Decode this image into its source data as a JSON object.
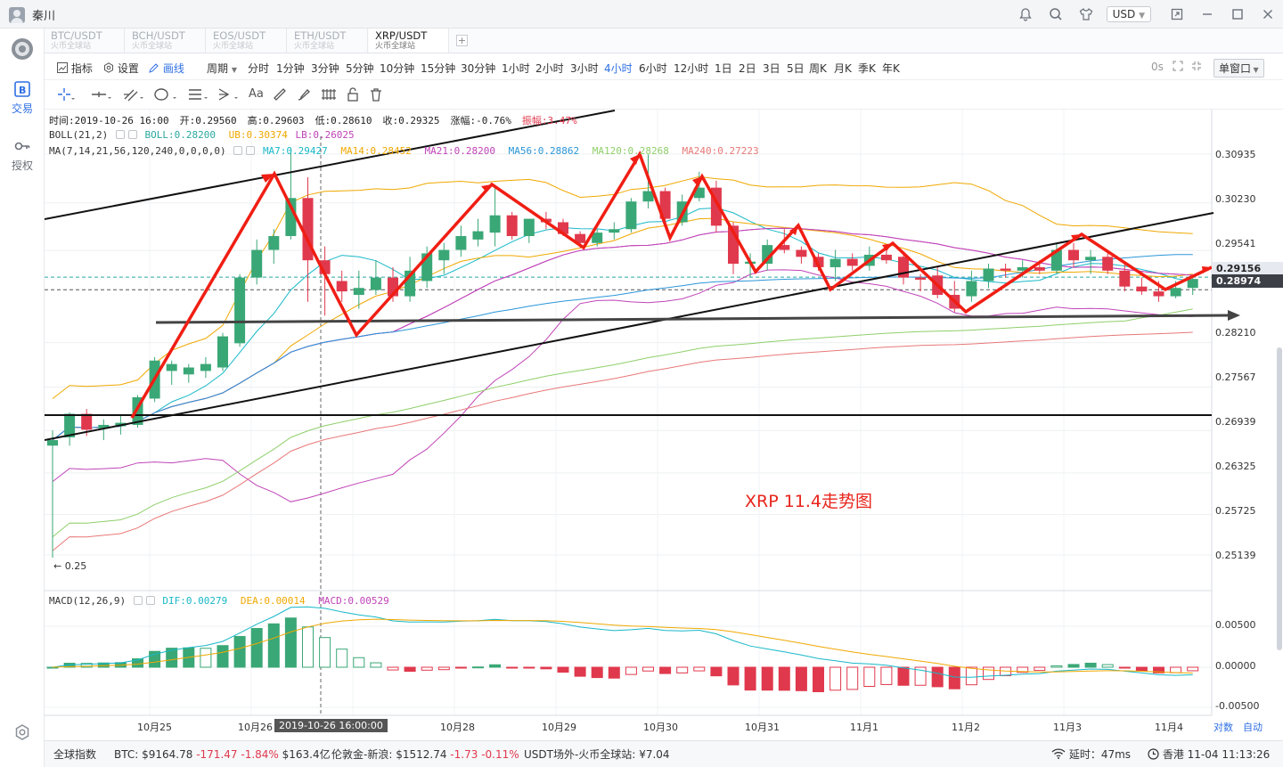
{
  "app": {
    "user": "秦川",
    "currency": "USD",
    "nav": [
      {
        "label": "交易",
        "icon": "trade-icon",
        "active": true
      },
      {
        "label": "授权",
        "icon": "key-icon",
        "active": false
      }
    ]
  },
  "tabs": [
    {
      "pair": "BTC/USDT",
      "source": "火币全球站",
      "active": false
    },
    {
      "pair": "BCH/USDT",
      "source": "火币全球站",
      "active": false
    },
    {
      "pair": "EOS/USDT",
      "source": "火币全球站",
      "active": false
    },
    {
      "pair": "ETH/USDT",
      "source": "火币全球站",
      "active": false
    },
    {
      "pair": "XRP/USDT",
      "source": "火币全球站",
      "active": true
    }
  ],
  "toolbar": {
    "indicator": "指标",
    "settings": "设置",
    "draw": "画线",
    "period_label": "周期",
    "periods": [
      "分时",
      "1分钟",
      "3分钟",
      "5分钟",
      "10分钟",
      "15分钟",
      "30分钟",
      "1小时",
      "2小时",
      "3小时",
      "4小时",
      "6小时",
      "12小时",
      "1日",
      "2日",
      "3日",
      "5日",
      "周K",
      "月K",
      "季K",
      "年K"
    ],
    "active_period": "4小时",
    "refresh": "0s",
    "window_mode": "单窗口"
  },
  "drawing_tools": [
    "crosshair-icon",
    "horizontal-line-icon",
    "parallel-lines-icon",
    "circle-icon",
    "menu-lines-icon",
    "arrow-pattern-icon",
    "text-icon",
    "ruler-icon",
    "brush-icon",
    "fibonacci-icon",
    "lock-icon",
    "trash-icon"
  ],
  "drawing_tools_text": "Aa",
  "legend": {
    "time": "时间:2019-10-26 16:00",
    "open": "开:0.29560",
    "high": "高:0.29603",
    "low": "低:0.28610",
    "close": "收:0.29325",
    "change": "涨幅:-0.76%",
    "amplitude": "振幅:3.47%",
    "boll_name": "BOLL(21,2)",
    "boll": "BOLL:0.28200",
    "boll_ub": "UB:0.30374",
    "boll_lb": "LB:0.26025",
    "ma_name": "MA(7,14,21,56,120,240,0,0,0,0)",
    "ma": [
      {
        "label": "MA7:0.29427",
        "color": "#18b8c8"
      },
      {
        "label": "MA14:0.28452",
        "color": "#f0a800"
      },
      {
        "label": "MA21:0.28200",
        "color": "#c044b8"
      },
      {
        "label": "MA56:0.28862",
        "color": "#2a96d8"
      },
      {
        "label": "MA120:0.28268",
        "color": "#8fcf6a"
      },
      {
        "label": "MA240:0.27223",
        "color": "#e87878"
      }
    ],
    "macd_name": "MACD(12,26,9)",
    "dif": "DIF:0.00279",
    "dea": "DEA:0.00014",
    "macd": "MACD:0.00529"
  },
  "price_axis": [
    "0.30935",
    "0.30230",
    "0.29541",
    "0.28210",
    "0.27567",
    "0.26939",
    "0.26325",
    "0.25725",
    "0.25139"
  ],
  "price_tags": [
    {
      "value": "0.29156",
      "bg": "#e6eaf0",
      "color": "#222"
    },
    {
      "value": "0.28974",
      "bg": "#3c3f46",
      "color": "#fff"
    }
  ],
  "macd_axis": [
    "0.00500",
    "0.00000",
    "-0.00500"
  ],
  "time_axis": [
    "10月25",
    "10月26",
    "10月28",
    "10月29",
    "10月30",
    "10月31",
    "11月1",
    "11月2",
    "11月3",
    "11月4"
  ],
  "time_highlight": "2019-10-26 16:00:00",
  "low_marker": "← 0.25",
  "annotation": "XRP 11.4走势图",
  "scale_buttons": [
    "对数",
    "自动"
  ],
  "colors": {
    "up": "#3aa776",
    "down": "#e0394d",
    "accent": "#2f6fe4",
    "annotation": "#e8251c"
  },
  "status": {
    "index": "全球指数",
    "btc_label": "BTC:",
    "btc_price": "$9164.78",
    "btc_change": "-171.47",
    "btc_pct": "-1.84%",
    "btc_vol": "$163.4亿",
    "gold_label": "伦敦金-新浪:",
    "gold_price": "$1512.74",
    "gold_change": "-1.73",
    "gold_pct": "-0.11%",
    "usdt_label": "USDT场外-火币全球站:",
    "usdt_price": "¥7.04",
    "latency": "延时：47ms",
    "clock": "香港 11-04 11:13:26"
  },
  "chart_data": {
    "type": "candlestick",
    "pair": "XRP/USDT",
    "interval": "4小时",
    "ylim": [
      0.25,
      0.313
    ],
    "candles": [
      {
        "o": 0.2672,
        "h": 0.2694,
        "l": 0.251,
        "c": 0.268
      },
      {
        "o": 0.2684,
        "h": 0.272,
        "l": 0.2672,
        "c": 0.2718
      },
      {
        "o": 0.2718,
        "h": 0.2725,
        "l": 0.2686,
        "c": 0.2695
      },
      {
        "o": 0.2697,
        "h": 0.271,
        "l": 0.268,
        "c": 0.2702
      },
      {
        "o": 0.27,
        "h": 0.2715,
        "l": 0.2688,
        "c": 0.2705
      },
      {
        "o": 0.2702,
        "h": 0.2745,
        "l": 0.2698,
        "c": 0.2742
      },
      {
        "o": 0.274,
        "h": 0.28,
        "l": 0.2735,
        "c": 0.2795
      },
      {
        "o": 0.278,
        "h": 0.2795,
        "l": 0.276,
        "c": 0.279
      },
      {
        "o": 0.2775,
        "h": 0.279,
        "l": 0.2763,
        "c": 0.2785
      },
      {
        "o": 0.278,
        "h": 0.28,
        "l": 0.277,
        "c": 0.279
      },
      {
        "o": 0.2785,
        "h": 0.2835,
        "l": 0.278,
        "c": 0.283
      },
      {
        "o": 0.282,
        "h": 0.292,
        "l": 0.2815,
        "c": 0.2915
      },
      {
        "o": 0.2915,
        "h": 0.297,
        "l": 0.2905,
        "c": 0.2955
      },
      {
        "o": 0.2955,
        "h": 0.2985,
        "l": 0.2935,
        "c": 0.2975
      },
      {
        "o": 0.2975,
        "h": 0.3103,
        "l": 0.297,
        "c": 0.303
      },
      {
        "o": 0.303,
        "h": 0.306,
        "l": 0.288,
        "c": 0.294
      },
      {
        "o": 0.294,
        "h": 0.296,
        "l": 0.286,
        "c": 0.292
      },
      {
        "o": 0.291,
        "h": 0.2925,
        "l": 0.288,
        "c": 0.2895
      },
      {
        "o": 0.289,
        "h": 0.2925,
        "l": 0.287,
        "c": 0.29
      },
      {
        "o": 0.2897,
        "h": 0.294,
        "l": 0.289,
        "c": 0.2915
      },
      {
        "o": 0.2915,
        "h": 0.293,
        "l": 0.288,
        "c": 0.2888
      },
      {
        "o": 0.2888,
        "h": 0.2945,
        "l": 0.288,
        "c": 0.2925
      },
      {
        "o": 0.291,
        "h": 0.296,
        "l": 0.29,
        "c": 0.295
      },
      {
        "o": 0.294,
        "h": 0.2965,
        "l": 0.292,
        "c": 0.2955
      },
      {
        "o": 0.2955,
        "h": 0.299,
        "l": 0.2945,
        "c": 0.2975
      },
      {
        "o": 0.297,
        "h": 0.3,
        "l": 0.296,
        "c": 0.2982
      },
      {
        "o": 0.298,
        "h": 0.3045,
        "l": 0.296,
        "c": 0.3005
      },
      {
        "o": 0.3005,
        "h": 0.301,
        "l": 0.297,
        "c": 0.2975
      },
      {
        "o": 0.2975,
        "h": 0.3,
        "l": 0.2965,
        "c": 0.3
      },
      {
        "o": 0.3,
        "h": 0.301,
        "l": 0.2985,
        "c": 0.2995
      },
      {
        "o": 0.2995,
        "h": 0.3,
        "l": 0.2975,
        "c": 0.2978
      },
      {
        "o": 0.2978,
        "h": 0.2982,
        "l": 0.2958,
        "c": 0.2965
      },
      {
        "o": 0.2965,
        "h": 0.2985,
        "l": 0.296,
        "c": 0.298
      },
      {
        "o": 0.298,
        "h": 0.2995,
        "l": 0.297,
        "c": 0.2985
      },
      {
        "o": 0.2985,
        "h": 0.303,
        "l": 0.298,
        "c": 0.3025
      },
      {
        "o": 0.3025,
        "h": 0.3093,
        "l": 0.3015,
        "c": 0.304
      },
      {
        "o": 0.304,
        "h": 0.3045,
        "l": 0.299,
        "c": 0.3
      },
      {
        "o": 0.2995,
        "h": 0.3035,
        "l": 0.299,
        "c": 0.3025
      },
      {
        "o": 0.303,
        "h": 0.3068,
        "l": 0.3025,
        "c": 0.3045
      },
      {
        "o": 0.3045,
        "h": 0.3055,
        "l": 0.298,
        "c": 0.299
      },
      {
        "o": 0.299,
        "h": 0.2995,
        "l": 0.292,
        "c": 0.2935
      },
      {
        "o": 0.2935,
        "h": 0.295,
        "l": 0.2915,
        "c": 0.2938
      },
      {
        "o": 0.2935,
        "h": 0.297,
        "l": 0.2925,
        "c": 0.2962
      },
      {
        "o": 0.2962,
        "h": 0.2985,
        "l": 0.295,
        "c": 0.2955
      },
      {
        "o": 0.2955,
        "h": 0.296,
        "l": 0.2935,
        "c": 0.2945
      },
      {
        "o": 0.2945,
        "h": 0.295,
        "l": 0.2925,
        "c": 0.293
      },
      {
        "o": 0.293,
        "h": 0.2955,
        "l": 0.291,
        "c": 0.2942
      },
      {
        "o": 0.2942,
        "h": 0.295,
        "l": 0.2925,
        "c": 0.2932
      },
      {
        "o": 0.2932,
        "h": 0.296,
        "l": 0.2925,
        "c": 0.2948
      },
      {
        "o": 0.2948,
        "h": 0.296,
        "l": 0.2935,
        "c": 0.294
      },
      {
        "o": 0.2945,
        "h": 0.2952,
        "l": 0.2905,
        "c": 0.2915
      },
      {
        "o": 0.2915,
        "h": 0.292,
        "l": 0.2895,
        "c": 0.2912
      },
      {
        "o": 0.2918,
        "h": 0.293,
        "l": 0.2885,
        "c": 0.289
      },
      {
        "o": 0.289,
        "h": 0.291,
        "l": 0.2865,
        "c": 0.287
      },
      {
        "o": 0.2888,
        "h": 0.2925,
        "l": 0.288,
        "c": 0.291
      },
      {
        "o": 0.291,
        "h": 0.2935,
        "l": 0.29,
        "c": 0.2928
      },
      {
        "o": 0.2928,
        "h": 0.2935,
        "l": 0.2915,
        "c": 0.2925
      },
      {
        "o": 0.2925,
        "h": 0.294,
        "l": 0.2915,
        "c": 0.293
      },
      {
        "o": 0.293,
        "h": 0.294,
        "l": 0.292,
        "c": 0.2925
      },
      {
        "o": 0.2925,
        "h": 0.2965,
        "l": 0.292,
        "c": 0.2955
      },
      {
        "o": 0.2955,
        "h": 0.2965,
        "l": 0.293,
        "c": 0.294
      },
      {
        "o": 0.294,
        "h": 0.2955,
        "l": 0.292,
        "c": 0.2945
      },
      {
        "o": 0.2945,
        "h": 0.295,
        "l": 0.292,
        "c": 0.2925
      },
      {
        "o": 0.2925,
        "h": 0.2935,
        "l": 0.2895,
        "c": 0.2902
      },
      {
        "o": 0.2902,
        "h": 0.2915,
        "l": 0.289,
        "c": 0.2895
      },
      {
        "o": 0.2895,
        "h": 0.291,
        "l": 0.288,
        "c": 0.2888
      },
      {
        "o": 0.2888,
        "h": 0.291,
        "l": 0.2885,
        "c": 0.29
      },
      {
        "o": 0.29,
        "h": 0.2915,
        "l": 0.289,
        "c": 0.2913
      }
    ]
  }
}
